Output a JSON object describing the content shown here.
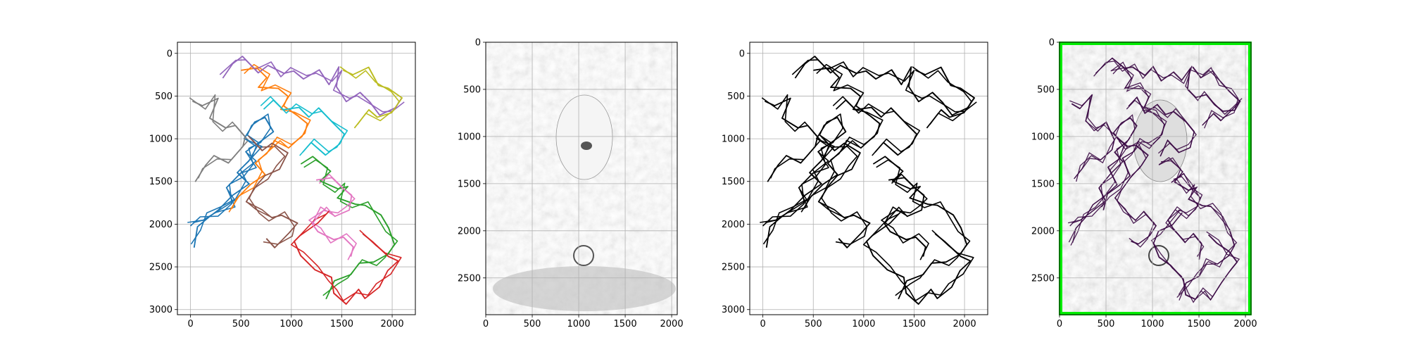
{
  "figure": {
    "background": "#ffffff"
  },
  "chart_data": [
    {
      "type": "line",
      "title": "",
      "xlabel": "",
      "ylabel": "",
      "xlim": [
        -130,
        2230
      ],
      "ylim": [
        3060,
        -130
      ],
      "xticks": [
        0,
        500,
        1000,
        1500,
        2000
      ],
      "yticks": [
        0,
        500,
        1000,
        1500,
        2000,
        2500,
        3000
      ],
      "grid": true,
      "palette": [
        "#1f77b4",
        "#ff7f0e",
        "#2ca02c",
        "#d62728",
        "#9467bd",
        "#8c564b",
        "#e377c2",
        "#7f7f7f",
        "#bcbd22",
        "#17becf"
      ],
      "series": [
        {
          "color_index": 0,
          "x": [
            0,
            120,
            260,
            420,
            360,
            520,
            640,
            560,
            700,
            820,
            760,
            620,
            540,
            680,
            600,
            480,
            560,
            420,
            300,
            180,
            80,
            10
          ],
          "y": [
            2020,
            1940,
            1880,
            1760,
            1560,
            1420,
            1300,
            1140,
            1020,
            880,
            740,
            820,
            960,
            1080,
            1240,
            1360,
            1520,
            1680,
            1800,
            1900,
            2050,
            2240
          ]
        },
        {
          "color_index": 1,
          "x": [
            520,
            640,
            760,
            700,
            860,
            980,
            900,
            1060,
            1180,
            1120,
            980,
            860,
            780,
            660,
            720,
            600,
            480,
            400
          ],
          "y": [
            220,
            140,
            280,
            420,
            380,
            500,
            640,
            700,
            820,
            960,
            1080,
            1020,
            1160,
            1260,
            1420,
            1560,
            1680,
            1820
          ]
        },
        {
          "color_index": 2,
          "x": [
            1100,
            1240,
            1380,
            1300,
            1440,
            1560,
            1480,
            1620,
            1740,
            1860,
            1960,
            2040,
            1940,
            1820,
            1700,
            1580,
            1440,
            1320
          ],
          "y": [
            1300,
            1240,
            1360,
            1500,
            1620,
            1540,
            1700,
            1800,
            1760,
            1900,
            2080,
            2220,
            2360,
            2480,
            2440,
            2600,
            2700,
            2860
          ]
        },
        {
          "color_index": 3,
          "x": [
            1700,
            1820,
            1940,
            2060,
            1980,
            1860,
            1740,
            1640,
            1540,
            1440,
            1380,
            1240,
            1120,
            1020,
            1100,
            1240,
            1380
          ],
          "y": [
            2100,
            2220,
            2340,
            2420,
            2560,
            2700,
            2860,
            2780,
            2900,
            2800,
            2640,
            2500,
            2360,
            2220,
            2100,
            1980,
            1860
          ]
        },
        {
          "color_index": 4,
          "x": [
            300,
            420,
            540,
            660,
            780,
            900,
            1020,
            1140,
            1260,
            1380,
            1500,
            1440,
            1560,
            1660,
            1780,
            1900,
            2020,
            2100
          ],
          "y": [
            260,
            120,
            60,
            200,
            140,
            260,
            180,
            300,
            220,
            340,
            160,
            420,
            540,
            460,
            600,
            700,
            640,
            560
          ]
        },
        {
          "color_index": 5,
          "x": [
            600,
            700,
            820,
            940,
            880,
            760,
            640,
            560,
            680,
            800,
            920,
            1040,
            980,
            860,
            740
          ],
          "y": [
            1000,
            1120,
            1060,
            1200,
            1340,
            1440,
            1580,
            1720,
            1840,
            1960,
            1880,
            2000,
            2140,
            2260,
            2180
          ]
        },
        {
          "color_index": 6,
          "x": [
            1260,
            1380,
            1500,
            1620,
            1560,
            1440,
            1320,
            1200,
            1280,
            1400,
            1520,
            1640,
            1580
          ],
          "y": [
            1500,
            1420,
            1560,
            1680,
            1800,
            1900,
            1820,
            1960,
            2080,
            2200,
            2120,
            2260,
            2400
          ]
        },
        {
          "color_index": 7,
          "x": [
            20,
            140,
            260,
            200,
            320,
            440,
            560,
            500,
            380,
            260,
            140,
            60
          ],
          "y": [
            560,
            640,
            500,
            760,
            900,
            820,
            980,
            1120,
            1260,
            1200,
            1340,
            1480
          ]
        },
        {
          "color_index": 8,
          "x": [
            1500,
            1620,
            1740,
            1860,
            1980,
            2080,
            2000,
            1880,
            1760,
            1640
          ],
          "y": [
            180,
            260,
            200,
            360,
            420,
            560,
            680,
            760,
            700,
            860
          ]
        },
        {
          "color_index": 9,
          "x": [
            700,
            820,
            940,
            1060,
            1180,
            1300,
            1420,
            1540,
            1460,
            1340,
            1220,
            1100
          ],
          "y": [
            620,
            540,
            680,
            600,
            740,
            660,
            800,
            940,
            1080,
            1160,
            1040,
            1180
          ]
        }
      ],
      "layers": 3
    },
    {
      "type": "image",
      "title": "",
      "xlim": [
        0,
        2060
      ],
      "ylim": [
        2890,
        0
      ],
      "xticks": [
        0,
        500,
        1000,
        1500,
        2000
      ],
      "yticks": [
        0,
        500,
        1000,
        1500,
        2000,
        2500
      ],
      "grid": true
    },
    {
      "type": "line",
      "title": "",
      "xlim": [
        -130,
        2230
      ],
      "ylim": [
        3060,
        -130
      ],
      "xticks": [
        0,
        500,
        1000,
        1500,
        2000
      ],
      "yticks": [
        0,
        500,
        1000,
        1500,
        2000,
        2500,
        3000
      ],
      "grid": true,
      "line_color": "#000000"
    },
    {
      "type": "image",
      "title": "",
      "xlim": [
        0,
        2060
      ],
      "ylim": [
        2890,
        0
      ],
      "xticks": [
        0,
        500,
        1000,
        1500,
        2000
      ],
      "yticks": [
        0,
        500,
        1000,
        1500,
        2000,
        2500
      ],
      "grid": true,
      "overlay_color": "#3b0a45",
      "frame_color": "#00ee00"
    }
  ]
}
